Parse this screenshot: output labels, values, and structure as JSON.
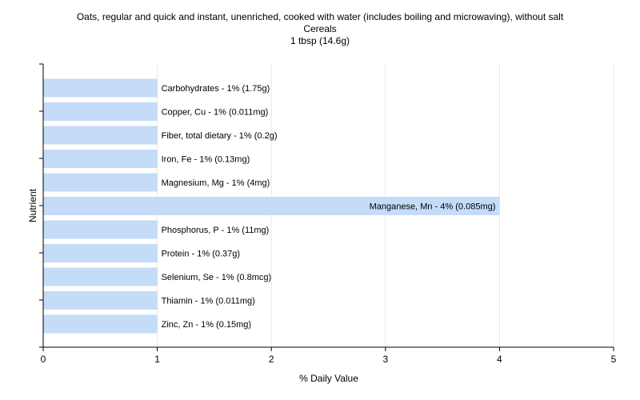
{
  "chart_data": {
    "type": "bar",
    "orientation": "horizontal",
    "title_lines": [
      "Oats, regular and quick and instant, unenriched, cooked with water (includes boiling and microwaving), without salt",
      "Cereals",
      "1 tbsp (14.6g)"
    ],
    "xlabel": "% Daily Value",
    "ylabel": "Nutrient",
    "xlim": [
      0,
      5
    ],
    "xticks": [
      "0",
      "1",
      "2",
      "3",
      "4",
      "5"
    ],
    "grid": true,
    "bar_color": "#c4dcf8",
    "categories": [
      "Carbohydrates",
      "Copper, Cu",
      "Fiber, total dietary",
      "Iron, Fe",
      "Magnesium, Mg",
      "Manganese, Mn",
      "Phosphorus, P",
      "Protein",
      "Selenium, Se",
      "Thiamin",
      "Zinc, Zn"
    ],
    "values": [
      1,
      1,
      1,
      1,
      1,
      4,
      1,
      1,
      1,
      1,
      1
    ],
    "labels": [
      "Carbohydrates - 1% (1.75g)",
      "Copper, Cu - 1% (0.011mg)",
      "Fiber, total dietary - 1% (0.2g)",
      "Iron, Fe - 1% (0.13mg)",
      "Magnesium, Mg - 1% (4mg)",
      "Manganese, Mn - 4% (0.085mg)",
      "Phosphorus, P - 1% (11mg)",
      "Protein - 1% (0.37g)",
      "Selenium, Se - 1% (0.8mcg)",
      "Thiamin - 1% (0.011mg)",
      "Zinc, Zn - 1% (0.15mg)"
    ]
  }
}
